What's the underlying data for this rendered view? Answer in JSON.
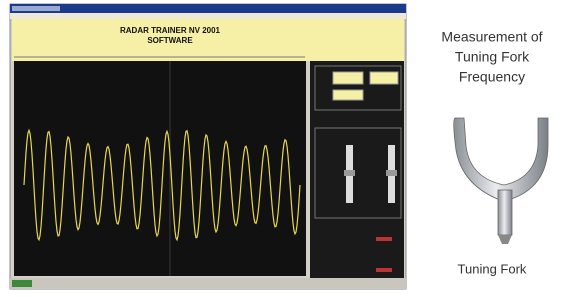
{
  "window": {
    "header": {
      "line1": "RADAR TRAINER NV 2001",
      "line2": "SOFTWARE"
    }
  },
  "caption": {
    "title_lines": [
      "Measurement of",
      "Tuning Fork",
      "Frequency"
    ],
    "label": "Tuning Fork"
  }
}
